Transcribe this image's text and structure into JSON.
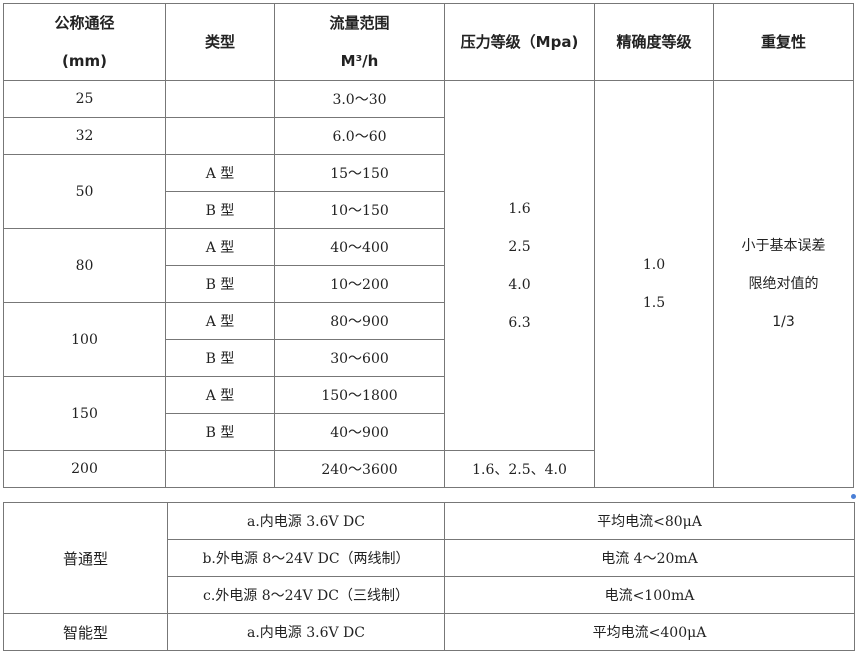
{
  "spec_table": {
    "headers": {
      "diameter": [
        "公称通径",
        "(mm)"
      ],
      "type": "类型",
      "flow": [
        "流量范围",
        "M³/h"
      ],
      "pressure": "压力等级（Mpa)",
      "accuracy": "精确度等级",
      "repeatability": "重复性"
    },
    "rows": [
      {
        "diameter": "25",
        "type": "",
        "flow": "3.0～30"
      },
      {
        "diameter": "32",
        "type": "",
        "flow": "6.0～60"
      },
      {
        "diameter": "50",
        "type": "A 型",
        "flow": "15～150"
      },
      {
        "diameter": "",
        "type": "B 型",
        "flow": "10～150"
      },
      {
        "diameter": "80",
        "type": "A 型",
        "flow": "40～400"
      },
      {
        "diameter": "",
        "type": "B 型",
        "flow": "10～200"
      },
      {
        "diameter": "100",
        "type": "A 型",
        "flow": "80～900"
      },
      {
        "diameter": "",
        "type": "B 型",
        "flow": "30～600"
      },
      {
        "diameter": "150",
        "type": "A 型",
        "flow": "150～1800"
      },
      {
        "diameter": "",
        "type": "B 型",
        "flow": "40～900"
      },
      {
        "diameter": "200",
        "type": "",
        "flow": "240～3600",
        "pressure": "1.6、2.5、4.0"
      }
    ],
    "pressure_values": [
      "1.6",
      "2.5",
      "4.0",
      "6.3"
    ],
    "accuracy_values": [
      "1.0",
      "1.5"
    ],
    "repeatability_lines": [
      "小于基本误差",
      "限绝对值的",
      "1/3"
    ]
  },
  "power_table": {
    "rows": [
      {
        "group": "普通型",
        "supply": "a.内电源 3.6V DC",
        "current": "平均电流<80μA"
      },
      {
        "supply": "b.外电源 8～24V DC（两线制）",
        "current": "电流 4～20mA"
      },
      {
        "supply": "c.外电源 8～24V DC（三线制）",
        "current": "电流<100mA"
      },
      {
        "group": "智能型",
        "supply": "a.内电源 3.6V DC",
        "current": "平均电流<400μA"
      }
    ]
  }
}
